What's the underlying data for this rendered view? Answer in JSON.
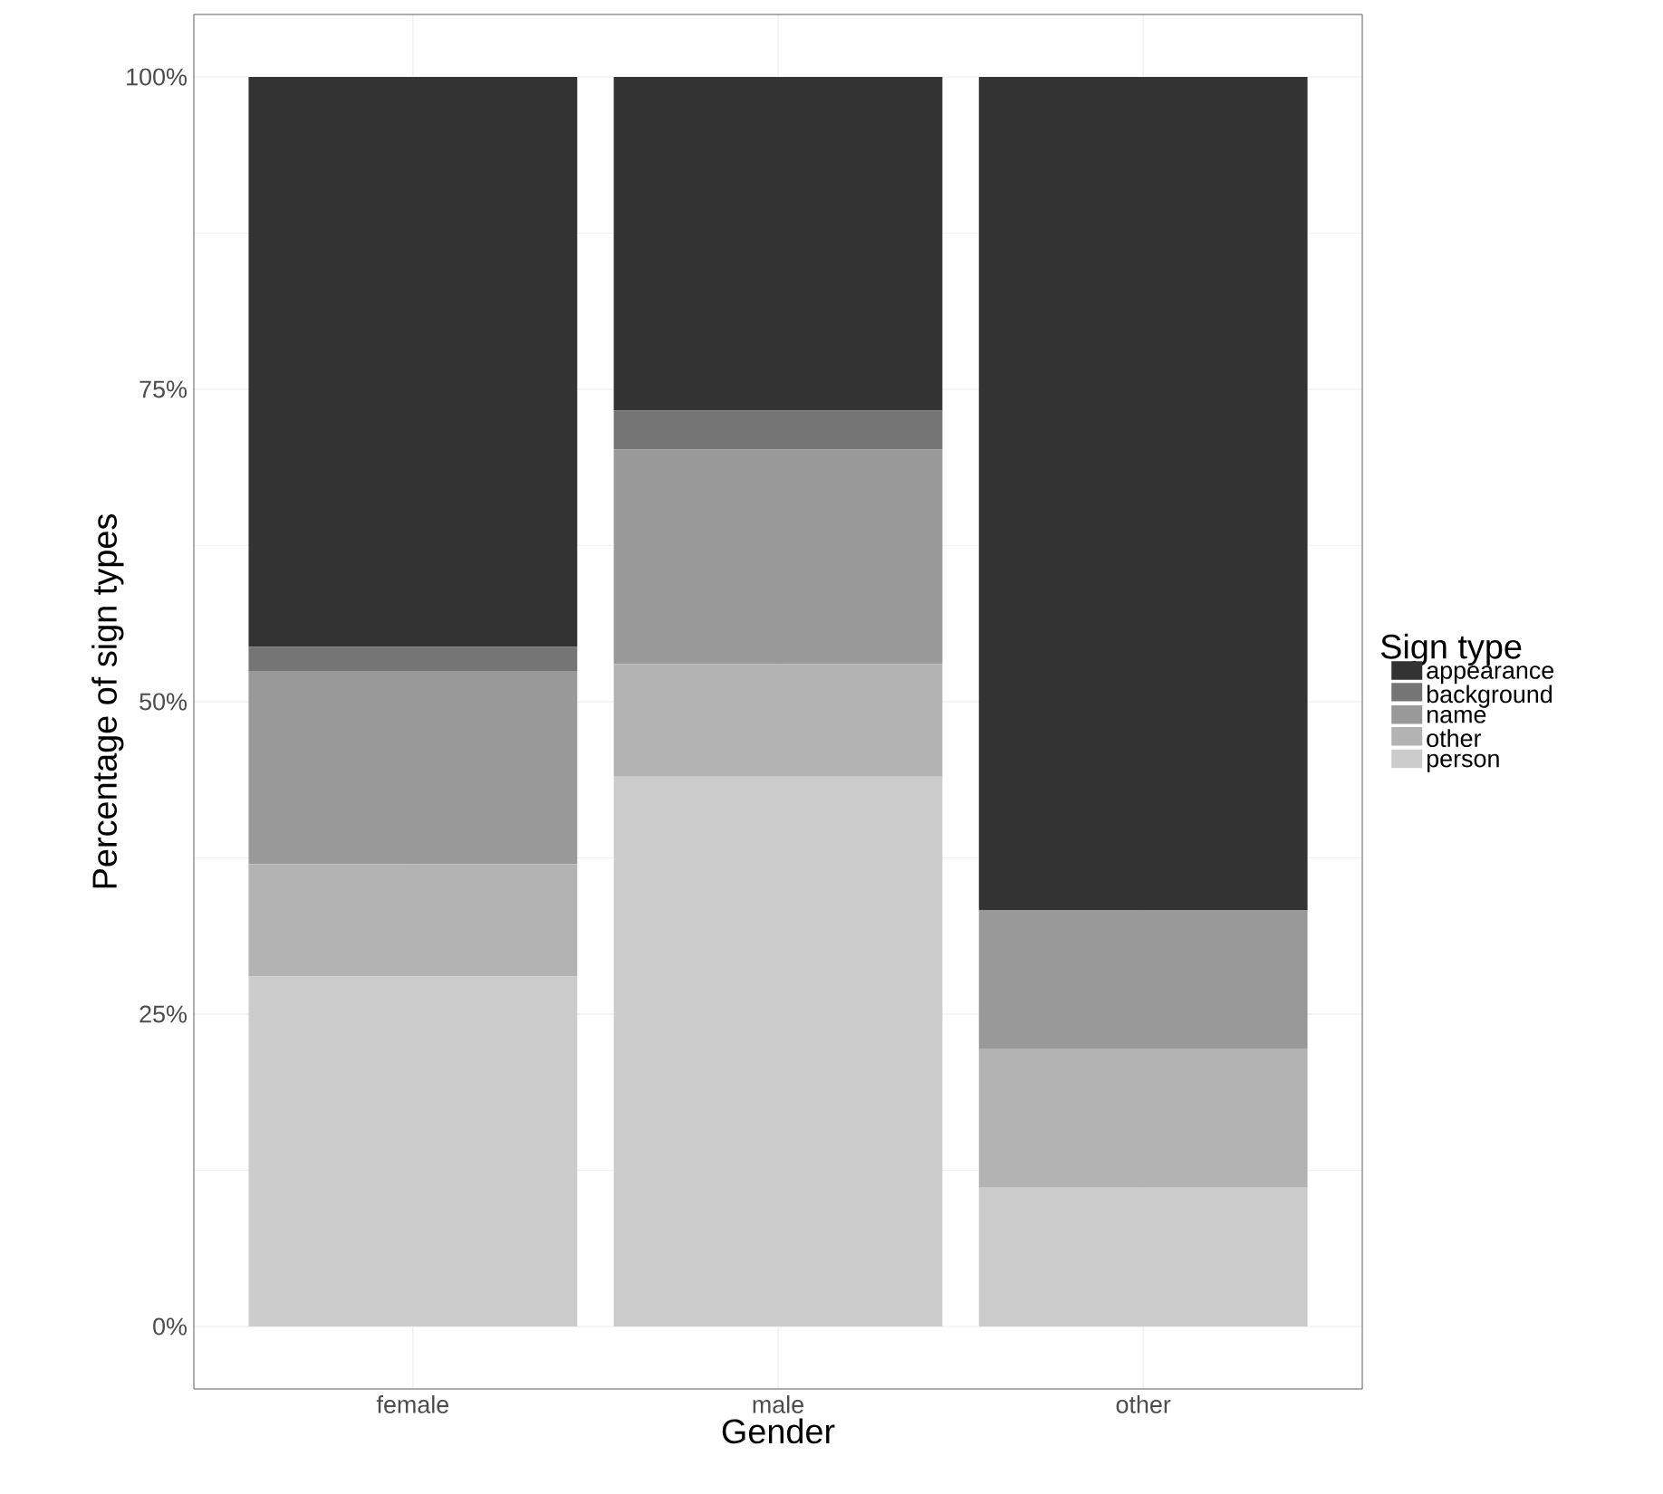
{
  "chart_data": {
    "type": "bar",
    "stacked": true,
    "xlabel": "Gender",
    "ylabel": "Percentage of sign types",
    "legend_title": "Sign type",
    "legend": "right",
    "grid": true,
    "categories": [
      "female",
      "male",
      "other"
    ],
    "series": [
      {
        "name": "person",
        "color": "#cccccc",
        "values": [
          28.0,
          44.0,
          11.1
        ]
      },
      {
        "name": "other",
        "color": "#b3b3b3",
        "values": [
          9.0,
          9.0,
          11.1
        ]
      },
      {
        "name": "name",
        "color": "#999999",
        "values": [
          15.4,
          17.2,
          11.1
        ]
      },
      {
        "name": "background",
        "color": "#757575",
        "values": [
          2.0,
          3.1,
          0
        ]
      },
      {
        "name": "appearance",
        "color": "#333333",
        "values": [
          45.6,
          26.7,
          66.7
        ]
      }
    ],
    "ylim": [
      -5,
      105
    ],
    "yticks": [
      {
        "value": 0,
        "label": "0%"
      },
      {
        "value": 25,
        "label": "25%"
      },
      {
        "value": 50,
        "label": "50%"
      },
      {
        "value": 75,
        "label": "75%"
      },
      {
        "value": 100,
        "label": "100%"
      }
    ]
  }
}
